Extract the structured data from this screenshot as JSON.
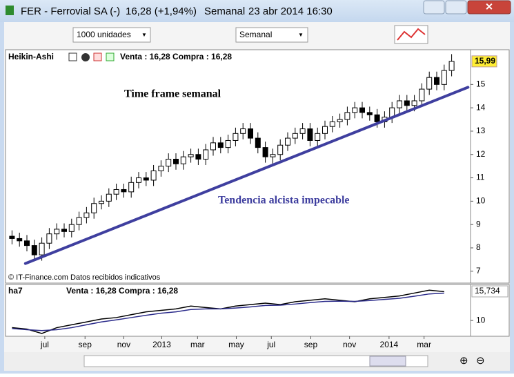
{
  "window": {
    "title": "FER - Ferrovial SA (-)",
    "change": "16,28 (+1,94%)",
    "period": "Semanal",
    "datetime": "23 abr 2014 16:30"
  },
  "toolbar": {
    "quantity": "1000 unidades",
    "timeframe": "Semanal"
  },
  "price_chart": {
    "type": "candlestick",
    "title": "Heikin-Ashi",
    "quote": "Venta : 16,28 Compra : 16,28",
    "annotations": [
      "Time frame semanal",
      "Tendencia alcista impecable"
    ],
    "source": "© IT-Finance.com  Datos recibidos indicativos",
    "up_color": "#ffffff",
    "down_color": "#000000",
    "candles": [
      [
        8.5,
        8.75,
        8.15,
        8.4
      ],
      [
        8.4,
        8.65,
        8.05,
        8.3
      ],
      [
        8.3,
        8.55,
        7.85,
        8.1
      ],
      [
        8.1,
        8.35,
        7.45,
        7.7
      ],
      [
        7.7,
        8.45,
        7.45,
        8.2
      ],
      [
        8.2,
        8.85,
        7.95,
        8.6
      ],
      [
        8.6,
        9.05,
        8.35,
        8.8
      ],
      [
        8.8,
        9.05,
        8.45,
        8.7
      ],
      [
        8.7,
        9.25,
        8.45,
        9.0
      ],
      [
        9.0,
        9.55,
        8.75,
        9.3
      ],
      [
        9.3,
        9.75,
        9.05,
        9.5
      ],
      [
        9.5,
        10.15,
        9.25,
        9.9
      ],
      [
        9.9,
        10.25,
        9.65,
        10.0
      ],
      [
        10.0,
        10.55,
        9.75,
        10.3
      ],
      [
        10.3,
        10.75,
        10.05,
        10.5
      ],
      [
        10.5,
        10.75,
        10.15,
        10.4
      ],
      [
        10.4,
        11.05,
        10.15,
        10.8
      ],
      [
        10.8,
        11.25,
        10.55,
        11.0
      ],
      [
        11.0,
        11.25,
        10.65,
        10.9
      ],
      [
        10.9,
        11.55,
        10.65,
        11.3
      ],
      [
        11.3,
        11.75,
        11.05,
        11.5
      ],
      [
        11.5,
        12.05,
        11.25,
        11.8
      ],
      [
        11.8,
        12.05,
        11.35,
        11.6
      ],
      [
        11.6,
        12.15,
        11.35,
        11.9
      ],
      [
        11.9,
        12.25,
        11.65,
        12.0
      ],
      [
        12.0,
        12.25,
        11.55,
        11.8
      ],
      [
        11.8,
        12.45,
        11.55,
        12.2
      ],
      [
        12.2,
        12.75,
        11.95,
        12.5
      ],
      [
        12.5,
        12.75,
        12.05,
        12.3
      ],
      [
        12.3,
        12.85,
        12.05,
        12.6
      ],
      [
        12.6,
        13.15,
        12.35,
        12.9
      ],
      [
        12.9,
        13.35,
        12.65,
        13.1
      ],
      [
        13.1,
        13.35,
        12.45,
        12.7
      ],
      [
        12.7,
        12.95,
        12.05,
        12.3
      ],
      [
        12.3,
        12.55,
        11.65,
        11.9
      ],
      [
        11.9,
        12.25,
        11.5,
        12.0
      ],
      [
        12.0,
        12.65,
        11.75,
        12.4
      ],
      [
        12.4,
        12.95,
        12.15,
        12.7
      ],
      [
        12.7,
        13.15,
        12.45,
        12.9
      ],
      [
        12.9,
        13.35,
        12.65,
        13.1
      ],
      [
        13.1,
        13.35,
        12.35,
        12.6
      ],
      [
        12.6,
        13.15,
        12.35,
        12.9
      ],
      [
        12.9,
        13.45,
        12.65,
        13.2
      ],
      [
        13.2,
        13.65,
        12.95,
        13.4
      ],
      [
        13.4,
        13.75,
        13.15,
        13.5
      ],
      [
        13.5,
        14.05,
        13.25,
        13.8
      ],
      [
        13.8,
        14.25,
        13.55,
        14.0
      ],
      [
        14.0,
        14.25,
        13.55,
        13.8
      ],
      [
        13.8,
        14.05,
        13.45,
        13.7
      ],
      [
        13.7,
        13.95,
        13.15,
        13.4
      ],
      [
        13.4,
        13.85,
        13.15,
        13.6
      ],
      [
        13.6,
        14.25,
        13.35,
        14.0
      ],
      [
        14.0,
        14.55,
        13.75,
        14.3
      ],
      [
        14.3,
        14.55,
        13.85,
        14.1
      ],
      [
        14.1,
        14.55,
        13.85,
        14.3
      ],
      [
        14.3,
        15.05,
        14.05,
        14.8
      ],
      [
        14.8,
        15.55,
        14.55,
        15.3
      ],
      [
        15.3,
        15.55,
        14.75,
        15.0
      ],
      [
        15.0,
        15.85,
        14.75,
        15.6
      ],
      [
        15.6,
        16.3,
        15.35,
        15.99
      ]
    ],
    "ylim": [
      6.55,
      16.4
    ],
    "yticks": [
      7,
      8,
      9,
      10,
      11,
      12,
      13,
      14,
      15
    ],
    "last": {
      "value": 15.99,
      "label": "15,99"
    },
    "trendline": {
      "x": [
        2.3,
        61.7
      ],
      "y": [
        7.33,
        14.88
      ],
      "color": "#3f3f9f"
    }
  },
  "indicator": {
    "type": "line",
    "title": "ha7",
    "quote": "Venta : 16,28 Compra : 16,28",
    "x": [
      0.5,
      2.5,
      4.5,
      6.5,
      8.5,
      10.5,
      12.5,
      14.5,
      16.5,
      18.5,
      20.5,
      22.5,
      24.5,
      26.5,
      28.5,
      30.5,
      32.5,
      34.5,
      36.5,
      38.5,
      40.5,
      42.5,
      44.5,
      46.5,
      48.5,
      50.5,
      52.5,
      54.5,
      56.5,
      58.5
    ],
    "series": [
      {
        "color": "#000000",
        "values": [
          9.75,
          9.7,
          9.55,
          9.75,
          9.85,
          9.95,
          10.05,
          10.1,
          10.2,
          10.3,
          10.35,
          10.4,
          10.5,
          10.45,
          10.4,
          10.5,
          10.55,
          10.6,
          10.55,
          10.65,
          10.7,
          10.75,
          10.7,
          10.65,
          10.75,
          10.8,
          10.85,
          10.95,
          11.05,
          11.0
        ]
      },
      {
        "color": "#2a2a8a",
        "values": [
          9.72,
          9.68,
          9.65,
          9.68,
          9.75,
          9.85,
          9.95,
          10.02,
          10.1,
          10.18,
          10.25,
          10.3,
          10.38,
          10.4,
          10.4,
          10.43,
          10.47,
          10.52,
          10.53,
          10.57,
          10.62,
          10.66,
          10.67,
          10.66,
          10.69,
          10.73,
          10.77,
          10.84,
          10.92,
          10.95
        ]
      }
    ],
    "ylim": [
      9.5,
      11.2
    ],
    "yticks": [
      10
    ],
    "last": {
      "value": 15.734,
      "label": "15,734"
    }
  },
  "xaxis": {
    "xlim": [
      0,
      60
    ],
    "xticks": [
      {
        "value": 4.9,
        "label": "jul"
      },
      {
        "value": 10.3,
        "label": "sep"
      },
      {
        "value": 15.5,
        "label": "nov"
      },
      {
        "value": 20.6,
        "label": "2013"
      },
      {
        "value": 25.4,
        "label": "mar"
      },
      {
        "value": 30.6,
        "label": "may"
      },
      {
        "value": 35.3,
        "label": "jul"
      },
      {
        "value": 40.6,
        "label": "sep"
      },
      {
        "value": 45.8,
        "label": "nov"
      },
      {
        "value": 51.1,
        "label": "2014"
      },
      {
        "value": 55.8,
        "label": "mar"
      }
    ]
  }
}
